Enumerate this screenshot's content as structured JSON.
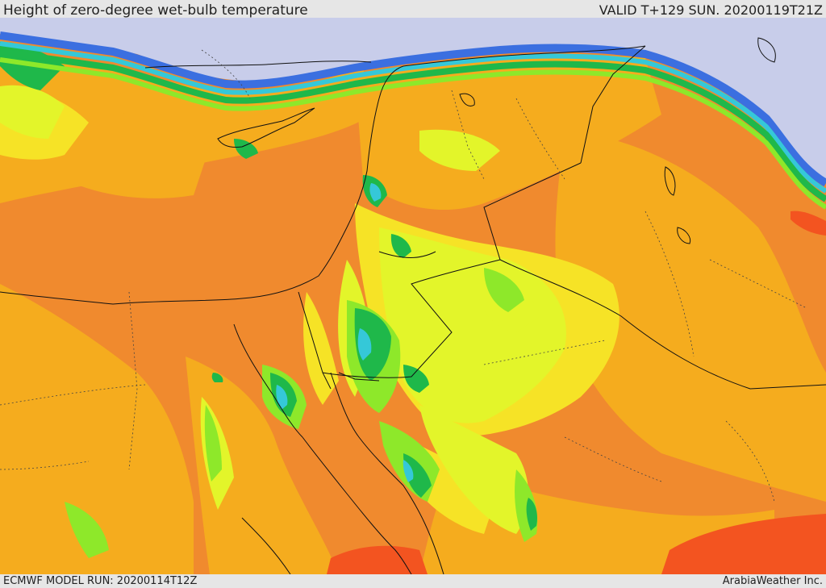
{
  "header": {
    "title": "Height of zero-degree wet-bulb temperature",
    "valid": "VALID T+129 SUN. 20200119T21Z"
  },
  "footer": {
    "model_run": "ECMWF MODEL RUN: 20200114T12Z",
    "credit": "ArabiaWeather Inc."
  },
  "map": {
    "region": "Eastern Mediterranean, Levant, Egypt and Arabian Peninsula",
    "colors": {
      "very_low": "#c8cdea",
      "low_blue": "#3b6fe0",
      "cyan": "#35c8d8",
      "green": "#1fb84a",
      "light_green": "#8ee82a",
      "yellow_green": "#e3f52a",
      "yellow": "#f6e326",
      "orange": "#f5ac1e",
      "dark_orange": "#f08a2e",
      "red_orange": "#f35420",
      "border_line": "#111111",
      "province_line": "#444444"
    }
  }
}
